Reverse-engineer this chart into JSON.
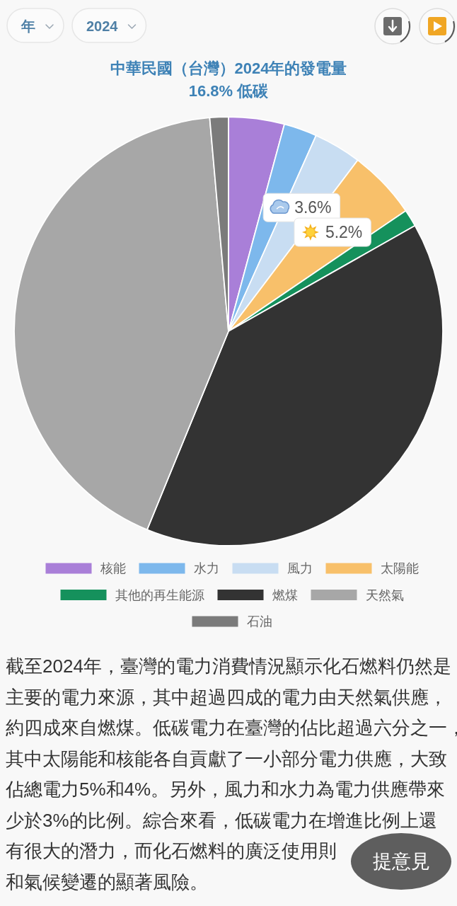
{
  "chart_data": {
    "type": "pie",
    "title": "中華民國（台灣）2024年的發電量",
    "subtitle": "16.8% 低碳",
    "categories": [
      "核能",
      "水力",
      "風力",
      "太陽能",
      "其他的再生能源",
      "燃煤",
      "天然氣",
      "石油"
    ],
    "values": [
      4.2,
      2.5,
      3.6,
      5.2,
      1.3,
      39.4,
      42.4,
      1.4
    ],
    "colors": [
      "#a97fd8",
      "#7db8ec",
      "#c8ddf2",
      "#f8c06a",
      "#15915c",
      "#333333",
      "#a7a7a7",
      "#7b7b7b"
    ],
    "value_labels": [
      null,
      null,
      "3.6%",
      "5.2%",
      null,
      null,
      null,
      null
    ],
    "legend": "bottom",
    "annotations": [
      "年",
      "2024",
      "截至2024年，臺灣的電力消費情況顯示化石燃料仍然是主要的電力來源，其中超過四成的電力由天然氣供應，約四成來自燃煤。低碳電力在臺灣的佔比超過六分之一，其中太陽能和核能各自貢獻了一小部分電力供應，大致佔總電力5%和4%。另外，風力和水力為電力供應帶來少於3%的比例。綜合來看，低碳電力在增進比例上還有很大的潛力，而化石燃料的廣泛使用則",
      "和氣候變遷的顯著風險。",
      "提意見"
    ]
  }
}
